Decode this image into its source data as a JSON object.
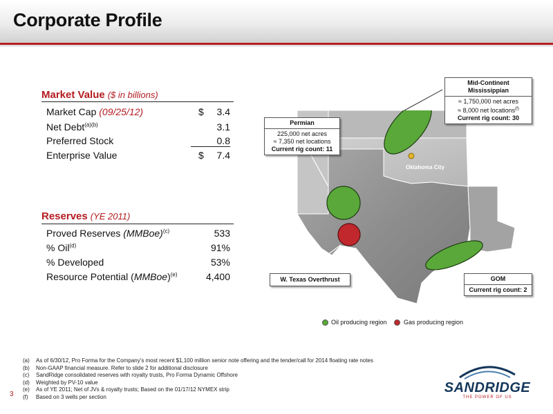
{
  "title": "Corporate Profile",
  "market_value": {
    "heading": "Market Value",
    "subheading": "($ in billions)",
    "rows": [
      {
        "label": "Market Cap",
        "label_note": "(09/25/12)",
        "currency": "$",
        "value": "3.4"
      },
      {
        "label": "Net Debt",
        "sup": "(a)(b)",
        "value": "3.1"
      },
      {
        "label": "Preferred Stock",
        "value": "0.8"
      },
      {
        "label": "Enterprise Value",
        "currency": "$",
        "value": "7.4"
      }
    ]
  },
  "reserves": {
    "heading": "Reserves",
    "subheading": "(YE 2011)",
    "rows": [
      {
        "label": "Proved Reserves",
        "label_italic": "(MMBoe)",
        "sup": "(c)",
        "value": "533"
      },
      {
        "label": "% Oil",
        "sup": "(d)",
        "value": "91%"
      },
      {
        "label": "% Developed",
        "value": "53%"
      },
      {
        "label": "Resource Potential (",
        "label_italic": "MMBoe",
        "label_after": ")",
        "sup": "(e)",
        "value": "4,400"
      }
    ]
  },
  "callouts": {
    "mid_continent": {
      "title_line1": "Mid-Continent",
      "title_line2": "Mississippian",
      "line1": "≈ 1,750,000 net acres",
      "line2": "≈ 8,000 net locations",
      "line2_sup": "(f)",
      "rig": "Current rig count: 30"
    },
    "permian": {
      "title": "Permian",
      "line1": "225,000 net acres",
      "line2": "≈ 7,350 net locations",
      "rig": "Current rig count: 11"
    },
    "w_texas": {
      "title": "W. Texas Overthrust"
    },
    "gom": {
      "title": "GOM",
      "rig": "Current rig count: 2"
    }
  },
  "map": {
    "city_label": "Oklahoma City"
  },
  "legend": {
    "oil": {
      "label": "Oil producing region",
      "color": "#5aa83a"
    },
    "gas": {
      "label": "Gas producing region",
      "color": "#c0282d"
    }
  },
  "footnotes": [
    {
      "key": "(a)",
      "text": "As of 6/30/12, Pro Forma for the Company’s most recent $1,100 million senior note offering and the tender/call for 2014 floating rate notes"
    },
    {
      "key": "(b)",
      "text": "Non-GAAP financial measure. Refer to slide 2 for additional disclosure"
    },
    {
      "key": "(c)",
      "text": "SandRidge consolidated reserves with royalty trusts, Pro Forma Dynamic Offshore"
    },
    {
      "key": "(d)",
      "text": "Weighted by PV-10 value"
    },
    {
      "key": "(e)",
      "text": "As of YE 2011; Net of JVs & royalty trusts; Based on the 01/17/12 NYMEX strip"
    },
    {
      "key": "(f)",
      "text": "Based on 3 wells per section"
    }
  ],
  "page_number": "3",
  "logo": {
    "name": "SANDRIDGE",
    "tagline": "THE POWER OF US"
  },
  "colors": {
    "accent": "#b31b20",
    "oil": "#5aa83a",
    "gas": "#c0282d",
    "brand": "#14365a"
  }
}
